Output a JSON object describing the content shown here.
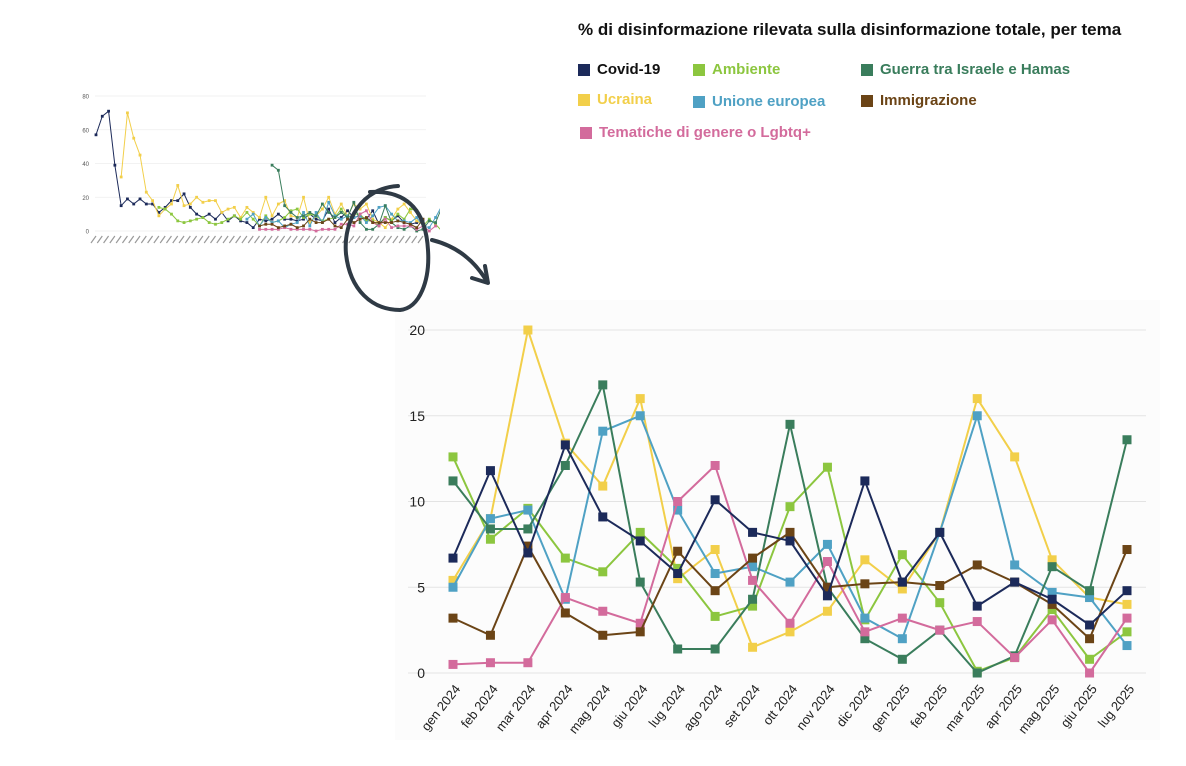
{
  "title": "% di disinformazione rilevata sulla disinformazione totale, per tema",
  "colors": {
    "covid": "#1c2a5a",
    "ambiente": "#8cc63f",
    "guerra": "#3a7d5c",
    "ucraina": "#f2cf4a",
    "ue": "#4fa1c4",
    "immigrazione": "#6b4416",
    "genere": "#d36b9c"
  },
  "legend": [
    {
      "key": "covid",
      "label": "Covid-19",
      "color": "#1c2a5a",
      "textColor": "#111111"
    },
    {
      "key": "ambiente",
      "label": "Ambiente",
      "color": "#8cc63f",
      "textColor": "#8cc63f"
    },
    {
      "key": "guerra",
      "label": "Guerra tra Israele e Hamas",
      "color": "#3a7d5c",
      "textColor": "#3a7d5c"
    },
    {
      "key": "ucraina",
      "label": "Ucraina",
      "color": "#f2cf4a",
      "textColor": "#f2cf4a"
    },
    {
      "key": "ue",
      "label": "Unione europea",
      "color": "#4fa1c4",
      "textColor": "#4fa1c4"
    },
    {
      "key": "immigrazione",
      "label": "Immigrazione",
      "color": "#6b4416",
      "textColor": "#6b4416"
    },
    {
      "key": "genere",
      "label": "Tematiche di genere o Lgbtq+",
      "color": "#d36b9c",
      "textColor": "#d36b9c"
    }
  ],
  "chart_data": [
    {
      "type": "line",
      "title": "% di disinformazione rilevata sulla disinformazione totale, per tema",
      "x": [
        "gen 2024",
        "feb 2024",
        "mar 2024",
        "apr 2024",
        "mag 2024",
        "giu 2024",
        "lug 2024",
        "ago 2024",
        "set 2024",
        "ott 2024",
        "nov 2024",
        "dic 2024",
        "gen 2025",
        "feb 2025",
        "mar 2025",
        "apr 2025",
        "mag 2025",
        "giu 2025",
        "lug 2025"
      ],
      "ylim": [
        0,
        20
      ],
      "yticks": [
        0,
        5,
        10,
        15,
        20
      ],
      "grid": true,
      "legend_position": "top-right",
      "series": [
        {
          "name": "Ucraina",
          "key": "ucraina",
          "values": [
            5.4,
            9.0,
            20.0,
            13.4,
            10.9,
            16.0,
            5.5,
            7.2,
            1.5,
            2.4,
            3.6,
            6.6,
            4.9,
            8.2,
            16.0,
            12.6,
            6.6,
            4.4,
            4.0
          ]
        },
        {
          "name": "Ambiente",
          "key": "ambiente",
          "values": [
            12.6,
            7.8,
            9.6,
            6.7,
            5.9,
            8.2,
            6.1,
            3.3,
            3.9,
            9.7,
            12.0,
            3.1,
            6.9,
            4.1,
            0.1,
            0.9,
            3.7,
            0.8,
            2.4
          ]
        },
        {
          "name": "Unione europea",
          "key": "ue",
          "values": [
            5.0,
            9.0,
            9.5,
            4.3,
            14.1,
            15.0,
            9.5,
            5.8,
            6.2,
            5.3,
            7.5,
            3.2,
            2.0,
            8.2,
            15.0,
            6.3,
            4.7,
            4.4,
            1.6
          ]
        },
        {
          "name": "Guerra tra Israele e Hamas",
          "key": "guerra",
          "values": [
            11.2,
            8.4,
            8.4,
            12.1,
            16.8,
            5.3,
            1.4,
            1.4,
            4.3,
            14.5,
            5.0,
            2.0,
            0.8,
            2.5,
            0.0,
            1.0,
            6.2,
            4.8,
            13.6
          ]
        },
        {
          "name": "Tematiche di genere o Lgbtq+",
          "key": "genere",
          "values": [
            0.5,
            0.6,
            0.6,
            4.4,
            3.6,
            2.9,
            10.0,
            12.1,
            5.4,
            2.9,
            6.5,
            2.4,
            3.2,
            2.5,
            3.0,
            0.9,
            3.1,
            0.0,
            3.2
          ]
        },
        {
          "name": "Immigrazione",
          "key": "immigrazione",
          "values": [
            3.2,
            2.2,
            7.4,
            3.5,
            2.2,
            2.4,
            7.1,
            4.8,
            6.7,
            8.2,
            5.0,
            5.2,
            5.3,
            5.1,
            6.3,
            5.3,
            4.0,
            2.0,
            7.2
          ]
        },
        {
          "name": "Covid-19",
          "key": "covid",
          "values": [
            6.7,
            11.8,
            7.0,
            13.3,
            9.1,
            7.7,
            5.8,
            10.1,
            8.2,
            7.7,
            4.5,
            11.2,
            5.3,
            8.2,
            3.9,
            5.3,
            4.3,
            2.8,
            4.8
          ]
        }
      ]
    },
    {
      "type": "line",
      "title": "",
      "ylim": [
        0,
        80
      ],
      "yticks": [
        0,
        20,
        40,
        60,
        80
      ],
      "grid": true,
      "x_count": 53,
      "series": [
        {
          "key": "covid",
          "start": 0,
          "values": [
            57,
            68,
            71,
            39,
            15,
            19,
            16,
            19,
            16,
            16,
            11,
            14,
            18,
            18,
            22,
            14,
            10,
            8,
            10,
            7,
            11,
            6,
            9,
            6,
            5,
            2,
            7,
            6,
            7,
            10,
            7,
            7,
            6,
            7,
            10,
            7,
            6,
            13,
            5,
            8,
            12,
            8,
            9,
            7,
            12,
            4,
            8,
            6,
            9,
            5,
            4,
            5,
            6
          ]
        },
        {
          "key": "ucraina",
          "start": 4,
          "values": [
            32,
            70,
            55,
            45,
            23,
            18,
            9,
            13,
            16,
            27,
            15,
            16,
            20,
            17,
            18,
            18,
            11,
            13,
            14,
            8,
            14,
            11,
            8,
            20,
            9,
            16,
            18,
            9,
            8,
            20,
            5,
            9,
            13,
            20,
            10,
            16,
            9,
            16,
            13,
            16,
            7,
            5,
            2,
            7,
            13,
            16,
            11,
            6,
            4
          ]
        },
        {
          "key": "ambiente",
          "start": 10,
          "values": [
            14,
            13,
            10,
            6,
            5,
            6,
            7,
            8,
            5,
            4,
            5,
            7,
            9,
            7,
            11,
            7,
            3,
            9,
            5,
            6,
            8,
            12,
            13,
            8,
            10,
            9,
            6,
            7,
            8,
            13,
            8,
            10,
            10,
            6,
            6,
            3,
            8,
            6,
            10,
            7,
            13,
            12,
            3,
            7,
            4,
            0,
            1,
            4,
            1,
            2
          ]
        },
        {
          "key": "ue",
          "start": 24,
          "values": [
            7,
            10,
            3,
            8,
            5,
            6,
            2,
            4,
            5,
            11,
            3,
            11,
            5,
            17,
            9,
            7,
            9,
            8,
            9,
            5,
            9,
            14,
            15,
            10,
            6,
            6,
            5,
            8,
            3,
            2,
            8,
            15,
            6,
            5,
            4,
            2
          ]
        },
        {
          "key": "guerra",
          "start": 28,
          "values": [
            39,
            36,
            15,
            11,
            8,
            9,
            11,
            9,
            16,
            11,
            8,
            11,
            8,
            17,
            5,
            1,
            1,
            4,
            15,
            5,
            2,
            1,
            3,
            0,
            1,
            6,
            5,
            14
          ]
        },
        {
          "key": "genere",
          "start": 26,
          "values": [
            1,
            1,
            1,
            1,
            2,
            1,
            1,
            1,
            1,
            0,
            1,
            1,
            1,
            4,
            4,
            3,
            10,
            12,
            5,
            3,
            7,
            2,
            3,
            3,
            3,
            1,
            3,
            0,
            3
          ]
        },
        {
          "key": "immigrazione",
          "start": 26,
          "values": [
            3,
            4,
            4,
            2,
            3,
            4,
            2,
            3,
            7,
            5,
            5,
            7,
            3,
            2,
            7,
            5,
            7,
            8,
            5,
            5,
            5,
            5,
            6,
            5,
            4,
            2,
            7
          ]
        }
      ]
    }
  ],
  "main_xlabels": [
    "gen 2024",
    "feb 2024",
    "mar 2024",
    "apr 2024",
    "mag 2024",
    "giu 2024",
    "lug 2024",
    "ago 2024",
    "set 2024",
    "ott 2024",
    "nov 2024",
    "dic 2024",
    "gen 2025",
    "feb 2025",
    "mar 2025",
    "apr 2025",
    "mag 2025",
    "giu 2025",
    "lug 2025"
  ],
  "mini_ylabels": [
    "80",
    "60",
    "40",
    "20",
    "0"
  ],
  "main_ylabels": [
    "20",
    "15",
    "10",
    "5",
    "0"
  ]
}
